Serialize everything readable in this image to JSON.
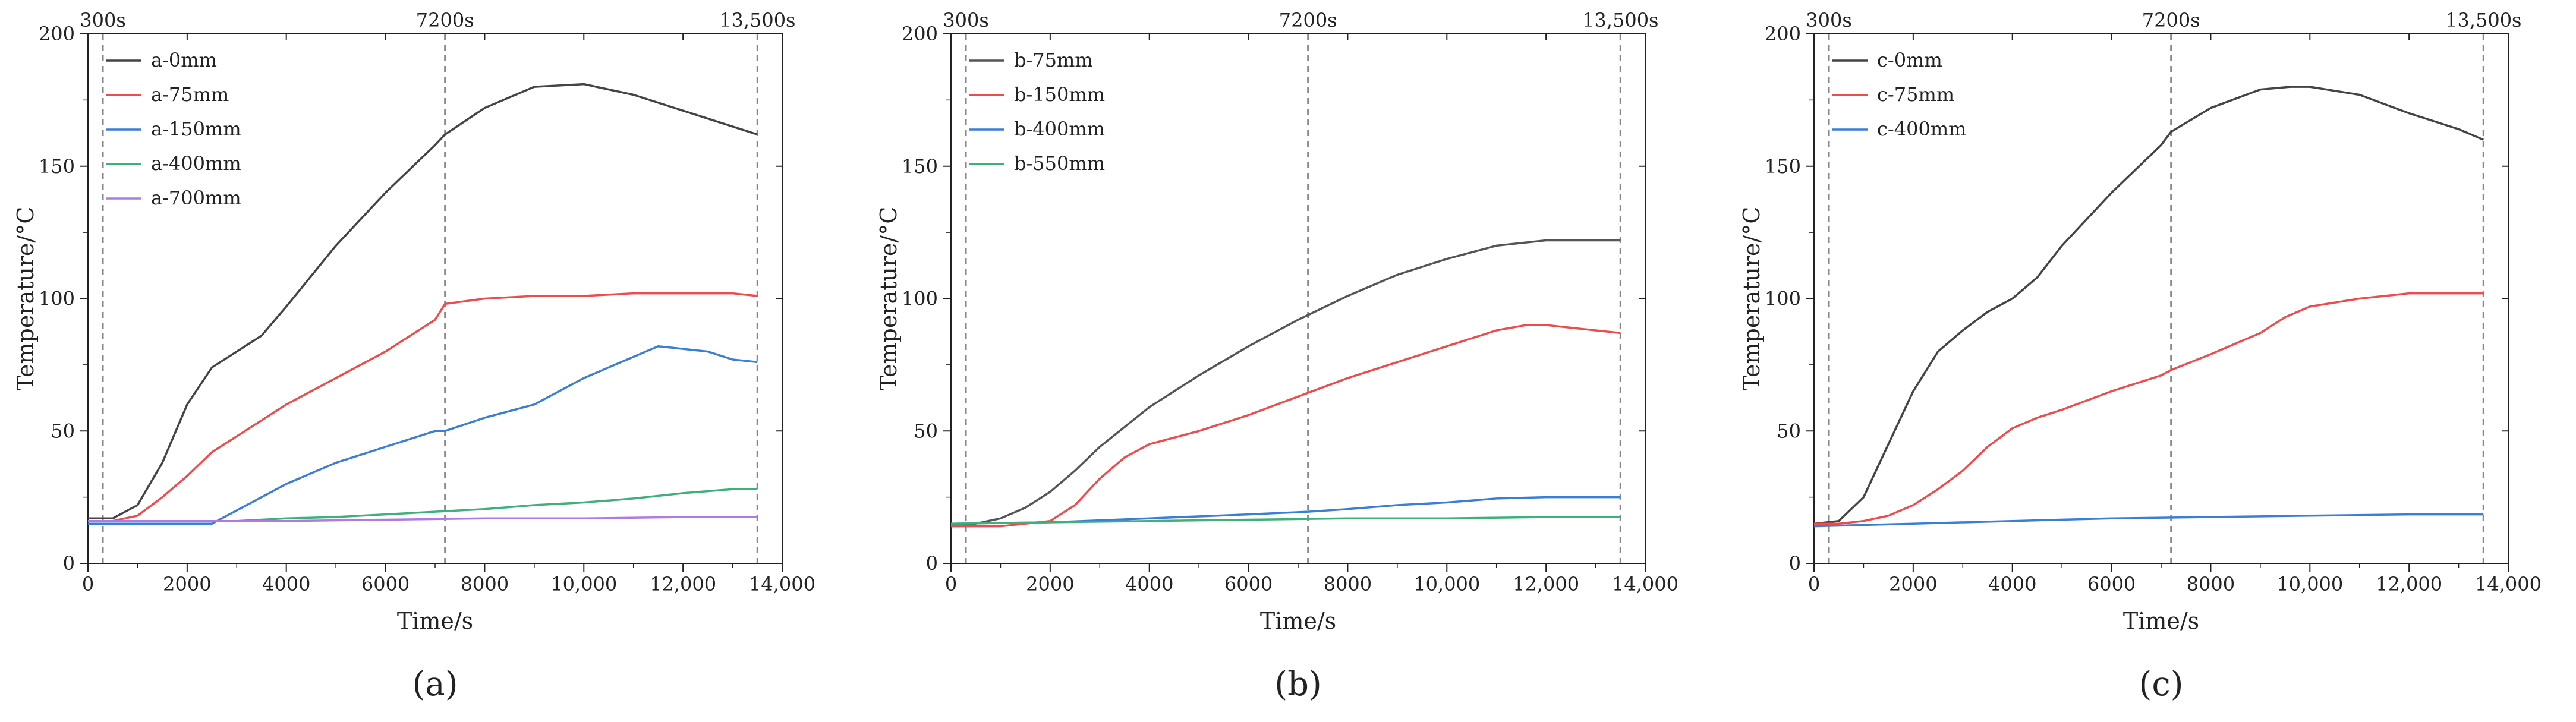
{
  "figure": {
    "panel_labels": [
      "(a)",
      "(b)",
      "(c)"
    ]
  },
  "chart_data": [
    {
      "type": "line",
      "panel": "(a)",
      "xlabel": "Time/s",
      "ylabel": "Temperature/°C",
      "xlim": [
        0,
        14000
      ],
      "ylim": [
        0,
        200
      ],
      "xticks": [
        0,
        2000,
        4000,
        6000,
        8000,
        10000,
        12000,
        14000
      ],
      "xtick_labels": [
        "0",
        "2000",
        "4000",
        "6000",
        "8000",
        "10,000",
        "12,000",
        "14,000"
      ],
      "yticks": [
        0,
        50,
        100,
        150,
        200
      ],
      "ytick_labels": [
        "0",
        "50",
        "100",
        "150",
        "200"
      ],
      "reference_lines": [
        {
          "x": 300,
          "label": "300s"
        },
        {
          "x": 7200,
          "label": "7200s"
        },
        {
          "x": 13500,
          "label": "13,500s"
        }
      ],
      "legend_position": "top-left",
      "series": [
        {
          "name": "a-0mm",
          "color": "#444444",
          "x": [
            0,
            500,
            1000,
            1500,
            2000,
            2500,
            3000,
            3500,
            4000,
            5000,
            6000,
            7000,
            7200,
            8000,
            9000,
            10000,
            11000,
            12000,
            13000,
            13500
          ],
          "y": [
            17,
            17,
            22,
            38,
            60,
            74,
            80,
            86,
            97,
            120,
            140,
            158,
            162,
            172,
            180,
            181,
            177,
            171,
            165,
            162
          ]
        },
        {
          "name": "a-75mm",
          "color": "#ee4b4b",
          "x": [
            0,
            500,
            1000,
            1500,
            2000,
            2500,
            3000,
            4000,
            5000,
            6000,
            7000,
            7200,
            8000,
            9000,
            10000,
            11000,
            12000,
            13000,
            13500
          ],
          "y": [
            16,
            16,
            18,
            25,
            33,
            42,
            48,
            60,
            70,
            80,
            92,
            98,
            100,
            101,
            101,
            102,
            102,
            102,
            101
          ]
        },
        {
          "name": "a-150mm",
          "color": "#3a7fd5",
          "x": [
            0,
            500,
            1000,
            1500,
            2000,
            2500,
            3000,
            4000,
            5000,
            6000,
            7000,
            7200,
            8000,
            9000,
            10000,
            11000,
            11500,
            12000,
            12500,
            13000,
            13500
          ],
          "y": [
            15,
            15,
            15,
            15,
            15,
            15,
            20,
            30,
            38,
            44,
            50,
            50,
            55,
            60,
            70,
            78,
            82,
            81,
            80,
            77,
            76
          ]
        },
        {
          "name": "a-400mm",
          "color": "#3fb07a",
          "x": [
            0,
            1000,
            2000,
            3000,
            4000,
            5000,
            6000,
            7000,
            8000,
            9000,
            10000,
            11000,
            12000,
            13000,
            13500
          ],
          "y": [
            16,
            16,
            16,
            16,
            17,
            17.5,
            18.5,
            19.5,
            20.5,
            22,
            23,
            24.5,
            26.5,
            28,
            28
          ]
        },
        {
          "name": "a-700mm",
          "color": "#b07ae0",
          "x": [
            0,
            2000,
            4000,
            6000,
            8000,
            10000,
            12000,
            13500
          ],
          "y": [
            16,
            16,
            16,
            16.5,
            17,
            17,
            17.5,
            17.5
          ]
        }
      ]
    },
    {
      "type": "line",
      "panel": "(b)",
      "xlabel": "Time/s",
      "ylabel": "Temperature/°C",
      "xlim": [
        0,
        14000
      ],
      "ylim": [
        0,
        200
      ],
      "xticks": [
        0,
        2000,
        4000,
        6000,
        8000,
        10000,
        12000,
        14000
      ],
      "xtick_labels": [
        "0",
        "2000",
        "4000",
        "6000",
        "8000",
        "10,000",
        "12,000",
        "14,000"
      ],
      "yticks": [
        0,
        50,
        100,
        150,
        200
      ],
      "ytick_labels": [
        "0",
        "50",
        "100",
        "150",
        "200"
      ],
      "reference_lines": [
        {
          "x": 300,
          "label": "300s"
        },
        {
          "x": 7200,
          "label": "7200s"
        },
        {
          "x": 13500,
          "label": "13,500s"
        }
      ],
      "legend_position": "top-left",
      "series": [
        {
          "name": "b-75mm",
          "color": "#555555",
          "x": [
            0,
            500,
            1000,
            1500,
            2000,
            2500,
            3000,
            4000,
            5000,
            6000,
            7000,
            8000,
            9000,
            10000,
            11000,
            12000,
            13000,
            13500
          ],
          "y": [
            15,
            15,
            17,
            21,
            27,
            35,
            44,
            59,
            71,
            82,
            92,
            101,
            109,
            115,
            120,
            122,
            122,
            122
          ]
        },
        {
          "name": "b-150mm",
          "color": "#ee4b4b",
          "x": [
            0,
            1000,
            2000,
            2500,
            3000,
            3500,
            4000,
            5000,
            6000,
            7000,
            8000,
            9000,
            10000,
            11000,
            11600,
            12000,
            13000,
            13500
          ],
          "y": [
            14,
            14,
            16,
            22,
            32,
            40,
            45,
            50,
            56,
            63,
            70,
            76,
            82,
            88,
            90,
            90,
            88,
            87
          ]
        },
        {
          "name": "b-400mm",
          "color": "#3a7fd5",
          "x": [
            0,
            2000,
            4000,
            6000,
            7200,
            8000,
            9000,
            10000,
            11000,
            12000,
            13500
          ],
          "y": [
            15,
            15.5,
            17,
            18.5,
            19.5,
            20.5,
            22,
            23,
            24.5,
            25,
            25
          ]
        },
        {
          "name": "b-550mm",
          "color": "#3fb07a",
          "x": [
            0,
            2000,
            4000,
            6000,
            8000,
            10000,
            12000,
            13500
          ],
          "y": [
            15,
            15.5,
            16,
            16.5,
            17,
            17,
            17.5,
            17.5
          ]
        }
      ]
    },
    {
      "type": "line",
      "panel": "(c)",
      "xlabel": "Time/s",
      "ylabel": "Temperature/°C",
      "xlim": [
        0,
        14000
      ],
      "ylim": [
        0,
        200
      ],
      "xticks": [
        0,
        2000,
        4000,
        6000,
        8000,
        10000,
        12000,
        14000
      ],
      "xtick_labels": [
        "0",
        "2000",
        "4000",
        "6000",
        "8000",
        "10,000",
        "12,000",
        "14,000"
      ],
      "yticks": [
        0,
        50,
        100,
        150,
        200
      ],
      "ytick_labels": [
        "0",
        "50",
        "100",
        "150",
        "200"
      ],
      "reference_lines": [
        {
          "x": 300,
          "label": "300s"
        },
        {
          "x": 7200,
          "label": "7200s"
        },
        {
          "x": 13500,
          "label": "13,500s"
        }
      ],
      "legend_position": "top-left",
      "series": [
        {
          "name": "c-0mm",
          "color": "#444444",
          "x": [
            0,
            500,
            1000,
            1500,
            2000,
            2500,
            3000,
            3500,
            4000,
            4500,
            5000,
            6000,
            7000,
            7200,
            8000,
            9000,
            9600,
            10000,
            11000,
            12000,
            13000,
            13500
          ],
          "y": [
            15,
            16,
            25,
            45,
            65,
            80,
            88,
            95,
            100,
            108,
            120,
            140,
            158,
            163,
            172,
            179,
            180,
            180,
            177,
            170,
            164,
            160
          ]
        },
        {
          "name": "c-75mm",
          "color": "#ee4b4b",
          "x": [
            0,
            500,
            1000,
            1500,
            2000,
            2500,
            3000,
            3500,
            4000,
            4500,
            5000,
            6000,
            7000,
            7200,
            8000,
            9000,
            9500,
            10000,
            11000,
            12000,
            13000,
            13500
          ],
          "y": [
            15,
            15,
            16,
            18,
            22,
            28,
            35,
            44,
            51,
            55,
            58,
            65,
            71,
            73,
            79,
            87,
            93,
            97,
            100,
            102,
            102,
            102
          ]
        },
        {
          "name": "c-400mm",
          "color": "#3a7fd5",
          "x": [
            0,
            2000,
            4000,
            6000,
            8000,
            10000,
            12000,
            13500
          ],
          "y": [
            14,
            15,
            16,
            17,
            17.5,
            18,
            18.5,
            18.5
          ]
        }
      ]
    }
  ]
}
